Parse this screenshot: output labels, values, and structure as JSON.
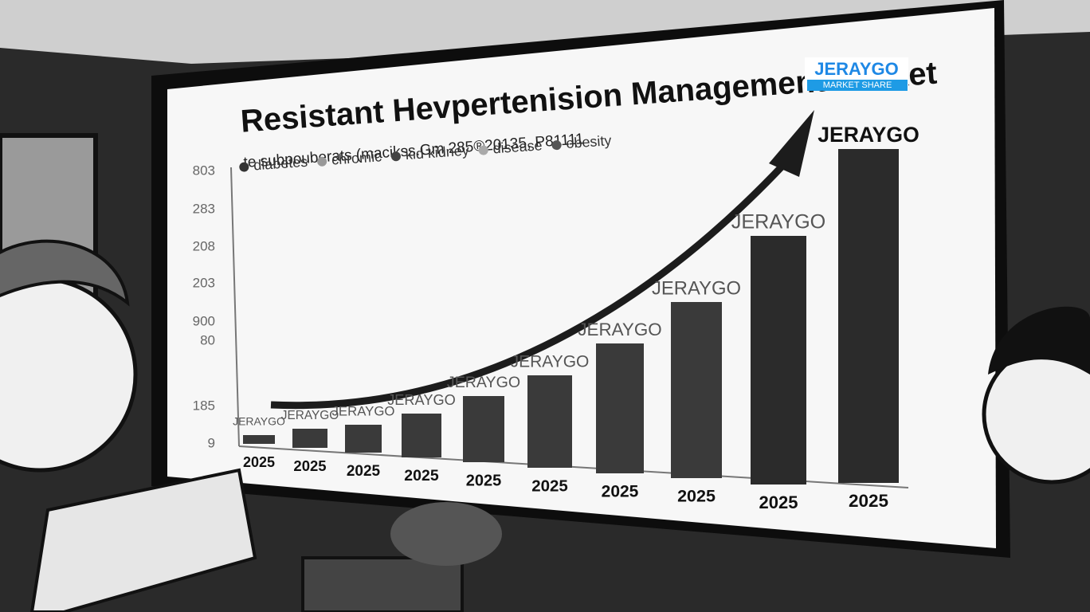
{
  "screen": {
    "title": "Resistant Hevpertenision Management Market",
    "subtitle": "te subpouberats (macikss.Gm 285®20135, P81111",
    "legend": [
      "diabetes",
      "chromic",
      "kid kidney",
      "disease",
      "obesity"
    ],
    "logo": {
      "name": "JERAYGO",
      "tag": "MARKET SHARE"
    },
    "axis_labels": [
      "803",
      "283",
      "208",
      "203",
      "900",
      "80",
      "185",
      "9"
    ],
    "bar_labels": [
      "JERAYGO",
      "JERAYGO",
      "JERAYGO",
      "JERAYGO",
      "JERAYGO",
      "JERAYGO",
      "JERAYGO",
      "JERAYGO",
      "JERAYGO",
      "JERAYGO"
    ],
    "years": [
      "2025",
      "2025",
      "2025",
      "2025",
      "2025",
      "2025",
      "2025",
      "2025",
      "2025",
      "2025"
    ]
  }
}
